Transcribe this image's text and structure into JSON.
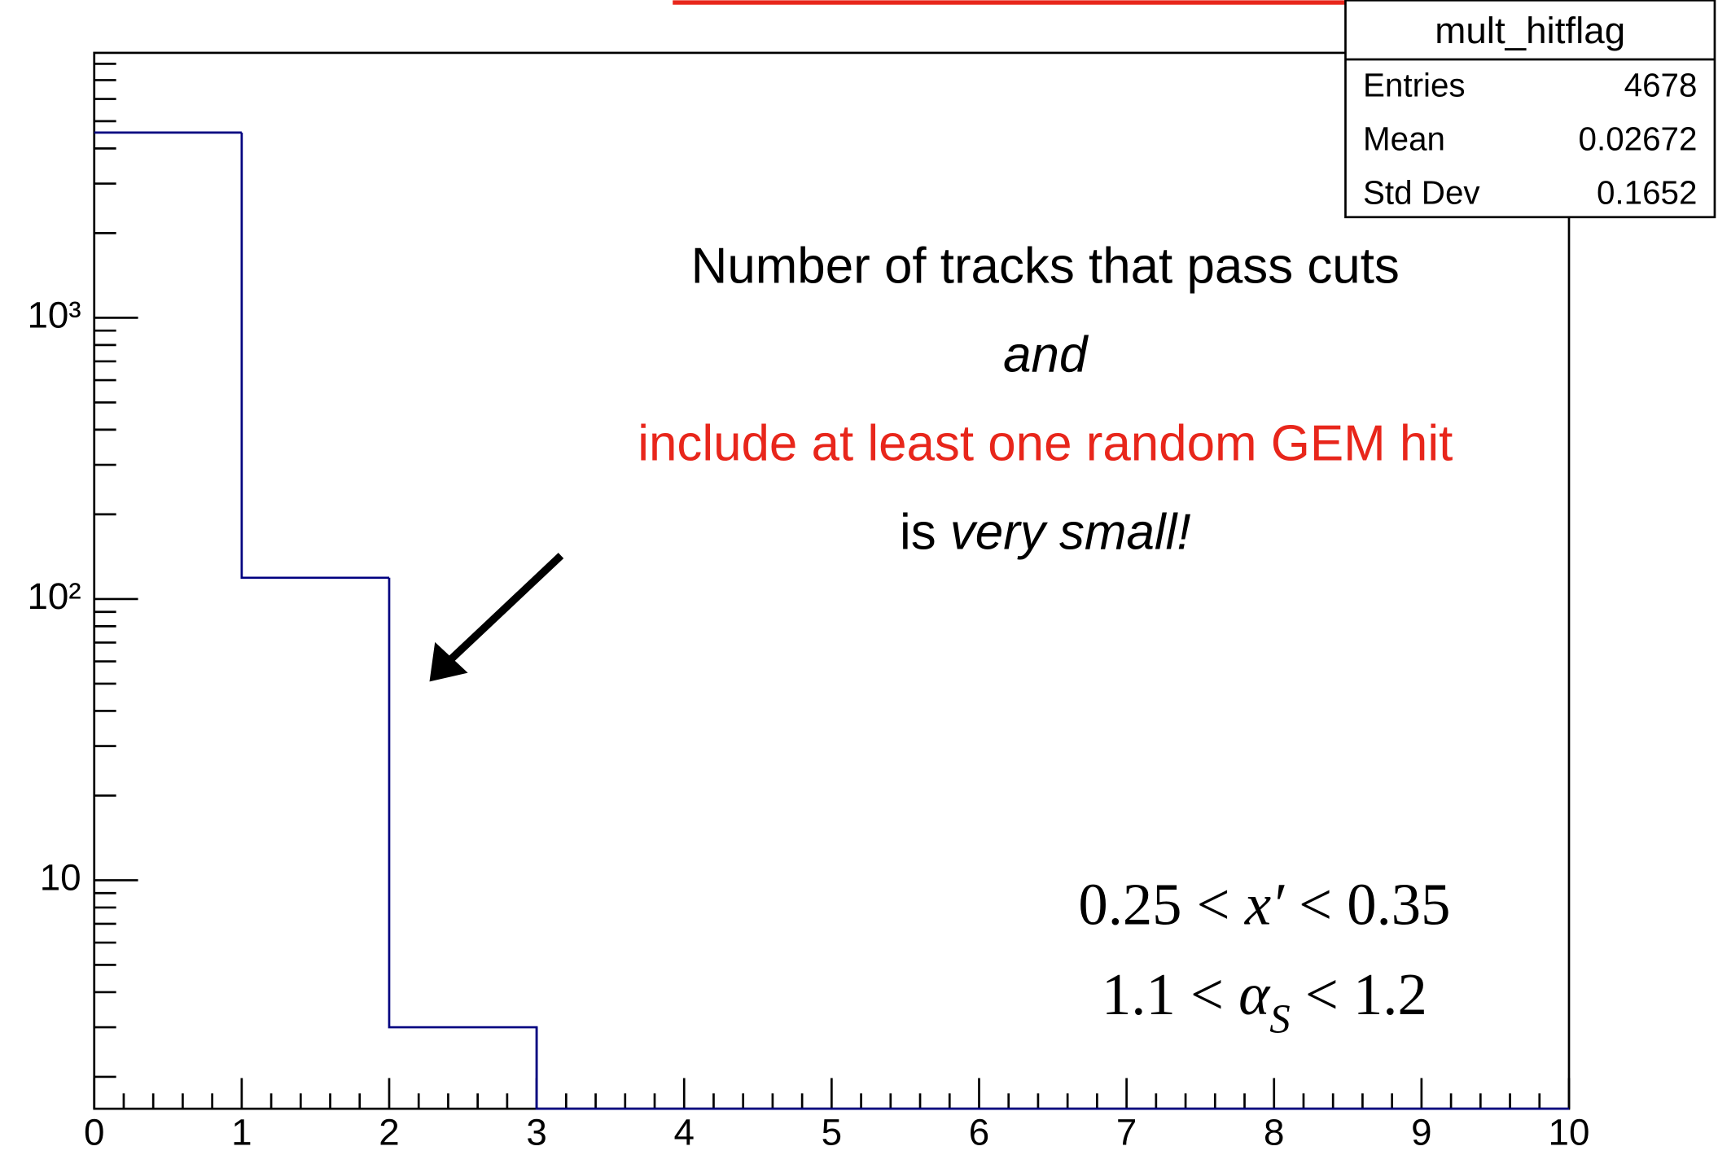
{
  "chart_data": {
    "type": "histogram",
    "bins": [
      0,
      1,
      2,
      3,
      4,
      5,
      6,
      7,
      8,
      9,
      10
    ],
    "values": [
      4556,
      119,
      3,
      0,
      0,
      0,
      0,
      0,
      0,
      0
    ],
    "color": "#000080",
    "log_y": true,
    "xlim": [
      0,
      10
    ],
    "xticks": [
      0,
      1,
      2,
      3,
      4,
      5,
      6,
      7,
      8,
      9,
      10
    ],
    "ylim": [
      1.54,
      8750
    ],
    "yticks": [
      10,
      {
        "value": 100,
        "label": "10²"
      },
      {
        "value": 1000,
        "label": "10³"
      }
    ],
    "stats": {
      "title": "mult_hitflag",
      "rows": [
        [
          "Entries",
          "4678"
        ],
        [
          "Mean",
          "0.02672"
        ],
        [
          "Std Dev",
          "0.1652"
        ]
      ]
    },
    "annotation_lines": [
      [
        {
          "text": "Number of tracks that pass cuts"
        }
      ],
      [
        {
          "text": "and",
          "italic": true
        }
      ],
      [
        {
          "text": "include at least one random GEM hit",
          "color": "#e8261b"
        }
      ],
      [
        {
          "text": "is "
        },
        {
          "text": "very small!",
          "italic": true
        }
      ]
    ],
    "cut_lines": [
      [
        {
          "text": "0.25 < "
        },
        {
          "text": "x′",
          "italic": true
        },
        {
          "text": " < 0.35"
        }
      ],
      [
        {
          "text": "1.1 < "
        },
        {
          "text": "α",
          "italic": true
        },
        {
          "text": "S",
          "italic": true,
          "sub": true
        },
        {
          "text": " < 1.2"
        }
      ]
    ]
  }
}
